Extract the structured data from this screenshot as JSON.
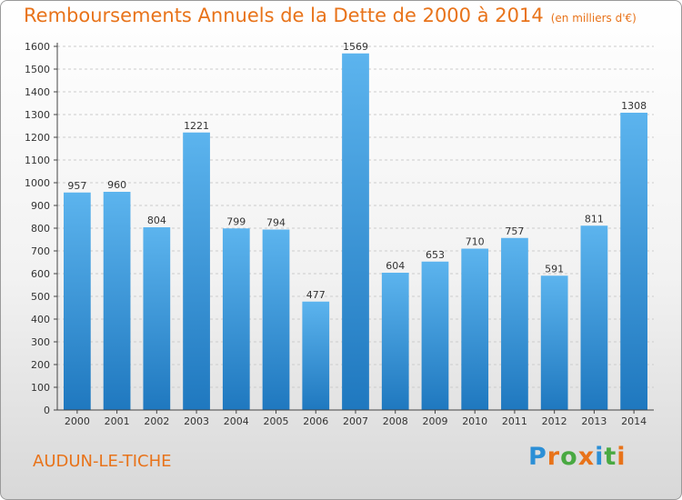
{
  "header": {
    "title": "Remboursements Annuels de la Dette de 2000 à 2014",
    "unit": "(en milliers d'€)"
  },
  "footer": {
    "location": "AUDUN-LE-TICHE",
    "logo": {
      "letters": [
        "P",
        "r",
        "o",
        "x",
        "i",
        "t",
        "i"
      ],
      "colors": [
        "#2c8fd6",
        "#e8731a",
        "#49a942",
        "#e8731a",
        "#2c8fd6",
        "#49a942",
        "#e8731a"
      ]
    }
  },
  "colors": {
    "bar_light": "#5cb4ee",
    "bar_dark": "#1f78bf",
    "axis": "#444444",
    "grid": "#cccccc",
    "accent": "#e8731a"
  },
  "chart_data": {
    "type": "bar",
    "categories": [
      "2000",
      "2001",
      "2002",
      "2003",
      "2004",
      "2005",
      "2006",
      "2007",
      "2008",
      "2009",
      "2010",
      "2011",
      "2012",
      "2013",
      "2014"
    ],
    "values": [
      957,
      960,
      804,
      1221,
      799,
      794,
      477,
      1569,
      604,
      653,
      710,
      757,
      591,
      811,
      1308
    ],
    "ylim": [
      0,
      1600
    ],
    "yticks": [
      0,
      100,
      200,
      300,
      400,
      500,
      600,
      700,
      800,
      900,
      1000,
      1100,
      1200,
      1300,
      1400,
      1500,
      1600
    ],
    "grid": true,
    "data_labels": true
  }
}
